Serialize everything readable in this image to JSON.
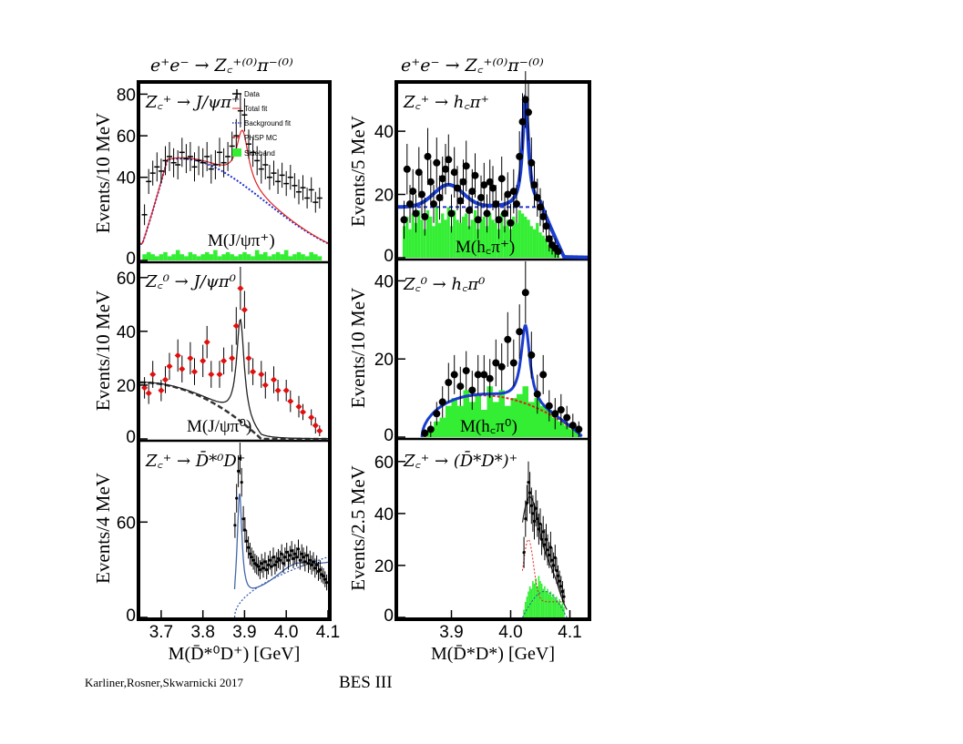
{
  "header": {
    "left": "e⁺e⁻ → Z꜀⁺⁽⁰⁾π⁻⁽⁰⁾",
    "right": "e⁺e⁻ → Z꜀⁺⁽⁰⁾π⁻⁽⁰⁾"
  },
  "footer": {
    "credit": "Karliner,Rosner,Skwarnicki 2017",
    "experiment": "BES III"
  },
  "legend": {
    "data": "Data",
    "total": "Total fit",
    "background": "Background fit",
    "phsp": "PHSP MC",
    "sideband": "Sideband"
  },
  "colors": {
    "sideband": "#33ee33",
    "total_fit_red": "#e02020",
    "background_blue": "#2233cc",
    "fit_blue": "#1a3ccf",
    "fit_black": "#222222"
  },
  "chart_data": [
    {
      "id": "p1",
      "type": "scatter",
      "title": "Z꜀⁺ → J/ψπ⁺",
      "mass_label": "M(J/ψπ⁺)",
      "ylabel": "Events/10 MeV",
      "xlim": [
        3.65,
        4.1
      ],
      "ylim": [
        0,
        85
      ],
      "yticks": [
        "80",
        "60",
        "40",
        "0"
      ],
      "ytick_vals": [
        80,
        60,
        40,
        0
      ],
      "x": [
        3.66,
        3.67,
        3.68,
        3.69,
        3.7,
        3.71,
        3.72,
        3.73,
        3.74,
        3.75,
        3.76,
        3.77,
        3.78,
        3.79,
        3.8,
        3.81,
        3.82,
        3.83,
        3.84,
        3.85,
        3.86,
        3.87,
        3.88,
        3.89,
        3.9,
        3.91,
        3.92,
        3.93,
        3.94,
        3.95,
        3.96,
        3.97,
        3.98,
        3.99,
        4.0,
        4.01,
        4.02,
        4.03,
        4.04,
        4.05,
        4.06,
        4.07,
        4.08
      ],
      "y": [
        22,
        38,
        42,
        45,
        43,
        48,
        50,
        47,
        46,
        52,
        49,
        50,
        45,
        48,
        47,
        50,
        44,
        46,
        52,
        47,
        50,
        55,
        60,
        72,
        70,
        56,
        52,
        48,
        44,
        46,
        40,
        42,
        38,
        41,
        37,
        40,
        36,
        33,
        35,
        30,
        34,
        28,
        30
      ],
      "err": [
        5,
        6,
        6,
        7,
        6,
        7,
        7,
        7,
        7,
        7,
        7,
        7,
        7,
        7,
        7,
        7,
        7,
        7,
        7,
        7,
        7,
        7,
        8,
        8,
        8,
        7,
        7,
        7,
        7,
        7,
        6,
        6,
        6,
        6,
        6,
        6,
        6,
        6,
        6,
        5,
        6,
        5,
        5
      ],
      "sideband": [
        3,
        4,
        3,
        2,
        3,
        4,
        2,
        3,
        5,
        3,
        2,
        4,
        3,
        2,
        3,
        4,
        3,
        5,
        2,
        3,
        4,
        3,
        2,
        3,
        4,
        3,
        2,
        5,
        3,
        4,
        2,
        3,
        4,
        3,
        5,
        2,
        3,
        4,
        3,
        2,
        4,
        3,
        2
      ]
    },
    {
      "id": "p2",
      "type": "scatter",
      "title": "Z꜀⁰ → J/ψπ⁰",
      "mass_label": "M(J/ψπ⁰)",
      "ylabel": "Events/10 MeV",
      "xlim": [
        3.65,
        4.1
      ],
      "ylim": [
        0,
        65
      ],
      "yticks": [
        "60",
        "40",
        "20",
        "0"
      ],
      "ytick_vals": [
        60,
        40,
        20,
        0
      ],
      "x": [
        3.66,
        3.67,
        3.68,
        3.7,
        3.71,
        3.72,
        3.74,
        3.75,
        3.77,
        3.78,
        3.8,
        3.81,
        3.82,
        3.84,
        3.85,
        3.87,
        3.88,
        3.89,
        3.9,
        3.91,
        3.92,
        3.94,
        3.95,
        3.97,
        3.98,
        4.0,
        4.01,
        4.03,
        4.04,
        4.06,
        4.07,
        4.08
      ],
      "y": [
        19,
        17,
        24,
        18,
        22,
        27,
        31,
        26,
        30,
        25,
        29,
        36,
        24,
        24,
        29,
        30,
        42,
        56,
        48,
        30,
        25,
        24,
        20,
        22,
        18,
        18,
        14,
        12,
        10,
        8,
        5,
        3
      ],
      "err": [
        4,
        4,
        5,
        4,
        5,
        5,
        6,
        5,
        6,
        5,
        6,
        6,
        5,
        5,
        5,
        5,
        7,
        8,
        7,
        6,
        5,
        5,
        5,
        5,
        4,
        4,
        4,
        4,
        3,
        3,
        3,
        2
      ]
    },
    {
      "id": "p3",
      "type": "scatter",
      "title": "Z꜀⁺ → D̄*⁰D⁺",
      "ylabel": "Events/4 MeV",
      "xlabel": "M(D̄*⁰D⁺) [GeV]",
      "xlim": [
        3.65,
        4.1
      ],
      "ylim": [
        0,
        110
      ],
      "yticks": [
        "60",
        "0"
      ],
      "ytick_vals": [
        60,
        0
      ],
      "xticks": [
        "3.7",
        "3.8",
        "3.9",
        "4.0",
        "4.1"
      ],
      "xtick_vals": [
        3.7,
        3.8,
        3.9,
        4.0,
        4.1
      ],
      "x": [
        3.877,
        3.881,
        3.885,
        3.889,
        3.893,
        3.897,
        3.901,
        3.905,
        3.909,
        3.913,
        3.917,
        3.921,
        3.925,
        3.929,
        3.933,
        3.937,
        3.941,
        3.945,
        3.949,
        3.953,
        3.957,
        3.961,
        3.965,
        3.969,
        3.973,
        3.977,
        3.981,
        3.985,
        3.989,
        3.993,
        3.997,
        4.001,
        4.005,
        4.009,
        4.013,
        4.017,
        4.021,
        4.025,
        4.029,
        4.033,
        4.037,
        4.041,
        4.045,
        4.049,
        4.053,
        4.057,
        4.061,
        4.065,
        4.069,
        4.073,
        4.077,
        4.081,
        4.085,
        4.089,
        4.093,
        4.097
      ],
      "y": [
        58,
        75,
        92,
        100,
        85,
        62,
        55,
        48,
        44,
        40,
        38,
        36,
        34,
        33,
        32,
        30,
        34,
        31,
        35,
        30,
        33,
        36,
        32,
        38,
        33,
        35,
        37,
        36,
        40,
        34,
        38,
        41,
        36,
        39,
        42,
        37,
        40,
        38,
        43,
        36,
        40,
        38,
        35,
        39,
        34,
        36,
        33,
        35,
        31,
        33,
        29,
        30,
        27,
        26,
        24,
        22
      ],
      "err": [
        8,
        9,
        10,
        10,
        9,
        8,
        8,
        7,
        7,
        7,
        6,
        6,
        6,
        6,
        6,
        6,
        6,
        6,
        6,
        6,
        6,
        6,
        6,
        6,
        6,
        6,
        6,
        6,
        6,
        6,
        6,
        6,
        6,
        6,
        6,
        6,
        6,
        6,
        6,
        6,
        6,
        6,
        6,
        6,
        6,
        6,
        6,
        6,
        6,
        6,
        6,
        6,
        5,
        5,
        5,
        5
      ]
    },
    {
      "id": "p4",
      "type": "scatter",
      "title": "Z꜀⁺ → h꜀π⁺",
      "mass_label": "M(h꜀π⁺)",
      "ylabel": "Events/5 MeV",
      "xlim": [
        3.81,
        4.13
      ],
      "ylim": [
        0,
        55
      ],
      "yticks": [
        "40",
        "20",
        "0"
      ],
      "ytick_vals": [
        40,
        20,
        0
      ],
      "x": [
        3.82,
        3.825,
        3.83,
        3.835,
        3.84,
        3.845,
        3.85,
        3.855,
        3.86,
        3.865,
        3.87,
        3.875,
        3.88,
        3.885,
        3.89,
        3.895,
        3.9,
        3.905,
        3.91,
        3.915,
        3.92,
        3.925,
        3.93,
        3.935,
        3.94,
        3.945,
        3.95,
        3.955,
        3.96,
        3.965,
        3.97,
        3.975,
        3.98,
        3.985,
        3.99,
        3.995,
        4.0,
        4.005,
        4.01,
        4.015,
        4.02,
        4.025,
        4.03,
        4.035,
        4.04,
        4.045,
        4.05,
        4.055,
        4.06,
        4.065,
        4.07,
        4.075,
        4.08
      ],
      "y": [
        12,
        28,
        17,
        21,
        14,
        27,
        20,
        13,
        32,
        24,
        17,
        30,
        19,
        25,
        28,
        31,
        14,
        27,
        22,
        18,
        24,
        29,
        15,
        21,
        26,
        12,
        19,
        23,
        14,
        24,
        22,
        17,
        12,
        25,
        14,
        20,
        11,
        21,
        17,
        32,
        43,
        50,
        46,
        30,
        23,
        19,
        16,
        13,
        10,
        6,
        4,
        3,
        2
      ],
      "err": [
        6,
        8,
        6,
        7,
        6,
        8,
        7,
        6,
        9,
        7,
        6,
        8,
        7,
        7,
        8,
        8,
        6,
        8,
        7,
        7,
        7,
        8,
        6,
        7,
        7,
        6,
        7,
        7,
        6,
        7,
        7,
        6,
        6,
        7,
        6,
        7,
        6,
        7,
        6,
        8,
        9,
        9,
        9,
        8,
        7,
        6,
        6,
        5,
        5,
        4,
        3,
        3,
        2
      ],
      "sideband": [
        10,
        13,
        9,
        14,
        11,
        15,
        12,
        9,
        15,
        13,
        10,
        16,
        11,
        14,
        12,
        16,
        10,
        15,
        12,
        11,
        13,
        14,
        10,
        12,
        15,
        9,
        12,
        13,
        10,
        14,
        12,
        11,
        9,
        14,
        10,
        12,
        9,
        13,
        11,
        15,
        14,
        13,
        12,
        10,
        9,
        11,
        8,
        7,
        6,
        4,
        3,
        2,
        1
      ]
    },
    {
      "id": "p5",
      "type": "scatter",
      "title": "Z꜀⁰ → h꜀π⁰",
      "mass_label": "M(h꜀π⁰)",
      "ylabel": "Events/10 MeV",
      "xlim": [
        3.81,
        4.13
      ],
      "ylim": [
        0,
        45
      ],
      "yticks": [
        "40",
        "20",
        "0"
      ],
      "ytick_vals": [
        40,
        20,
        0
      ],
      "x": [
        3.855,
        3.865,
        3.875,
        3.885,
        3.895,
        3.905,
        3.915,
        3.925,
        3.935,
        3.945,
        3.955,
        3.965,
        3.975,
        3.985,
        3.995,
        4.005,
        4.015,
        4.025,
        4.035,
        4.045,
        4.055,
        4.065,
        4.075,
        4.085,
        4.095,
        4.105,
        4.115
      ],
      "y": [
        1,
        2,
        6,
        9,
        14,
        16,
        13,
        17,
        12,
        16,
        16,
        15,
        19,
        18,
        25,
        19,
        27,
        37,
        21,
        11,
        16,
        8,
        6,
        7,
        5,
        3,
        2
      ],
      "err": [
        1,
        2,
        3,
        4,
        5,
        5,
        5,
        5,
        5,
        5,
        5,
        5,
        6,
        6,
        7,
        6,
        7,
        8,
        6,
        5,
        5,
        4,
        4,
        4,
        3,
        3,
        2
      ],
      "sideband": [
        1,
        2,
        4,
        5,
        8,
        10,
        8,
        12,
        9,
        11,
        7,
        13,
        9,
        12,
        8,
        10,
        11,
        13,
        9,
        10,
        8,
        7,
        5,
        4,
        3,
        2,
        1
      ]
    },
    {
      "id": "p6",
      "type": "scatter",
      "title": "Z꜀⁺ → (D̄*D*)⁺",
      "ylabel": "Events/2.5 MeV",
      "xlabel": "M(D̄*D*) [GeV]",
      "xlim": [
        3.81,
        4.13
      ],
      "ylim": [
        0,
        68
      ],
      "yticks": [
        "60",
        "40",
        "20",
        "0"
      ],
      "ytick_vals": [
        60,
        40,
        20,
        0
      ],
      "xticks": [
        "3.9",
        "4.0",
        "4.1"
      ],
      "xtick_vals": [
        3.9,
        4.0,
        4.1
      ],
      "x": [
        4.0225,
        4.025,
        4.0275,
        4.03,
        4.0325,
        4.035,
        4.0375,
        4.04,
        4.0425,
        4.045,
        4.0475,
        4.05,
        4.0525,
        4.055,
        4.0575,
        4.06,
        4.0625,
        4.065,
        4.0675,
        4.07,
        4.0725,
        4.075,
        4.0775,
        4.08,
        4.0825,
        4.085,
        4.0875,
        4.09
      ],
      "y": [
        25,
        38,
        44,
        52,
        48,
        43,
        40,
        37,
        42,
        38,
        34,
        36,
        30,
        33,
        28,
        30,
        26,
        24,
        27,
        22,
        20,
        23,
        18,
        16,
        14,
        12,
        10,
        8
      ],
      "err": [
        6,
        7,
        7,
        8,
        8,
        7,
        7,
        7,
        7,
        7,
        6,
        6,
        6,
        6,
        6,
        6,
        6,
        5,
        6,
        5,
        5,
        5,
        5,
        4,
        4,
        4,
        4,
        3
      ],
      "sideband": [
        3,
        6,
        8,
        10,
        12,
        11,
        14,
        13,
        15,
        12,
        16,
        14,
        13,
        11,
        12,
        10,
        11,
        9,
        10,
        8,
        9,
        7,
        8,
        6,
        7,
        5,
        6,
        4
      ]
    }
  ]
}
